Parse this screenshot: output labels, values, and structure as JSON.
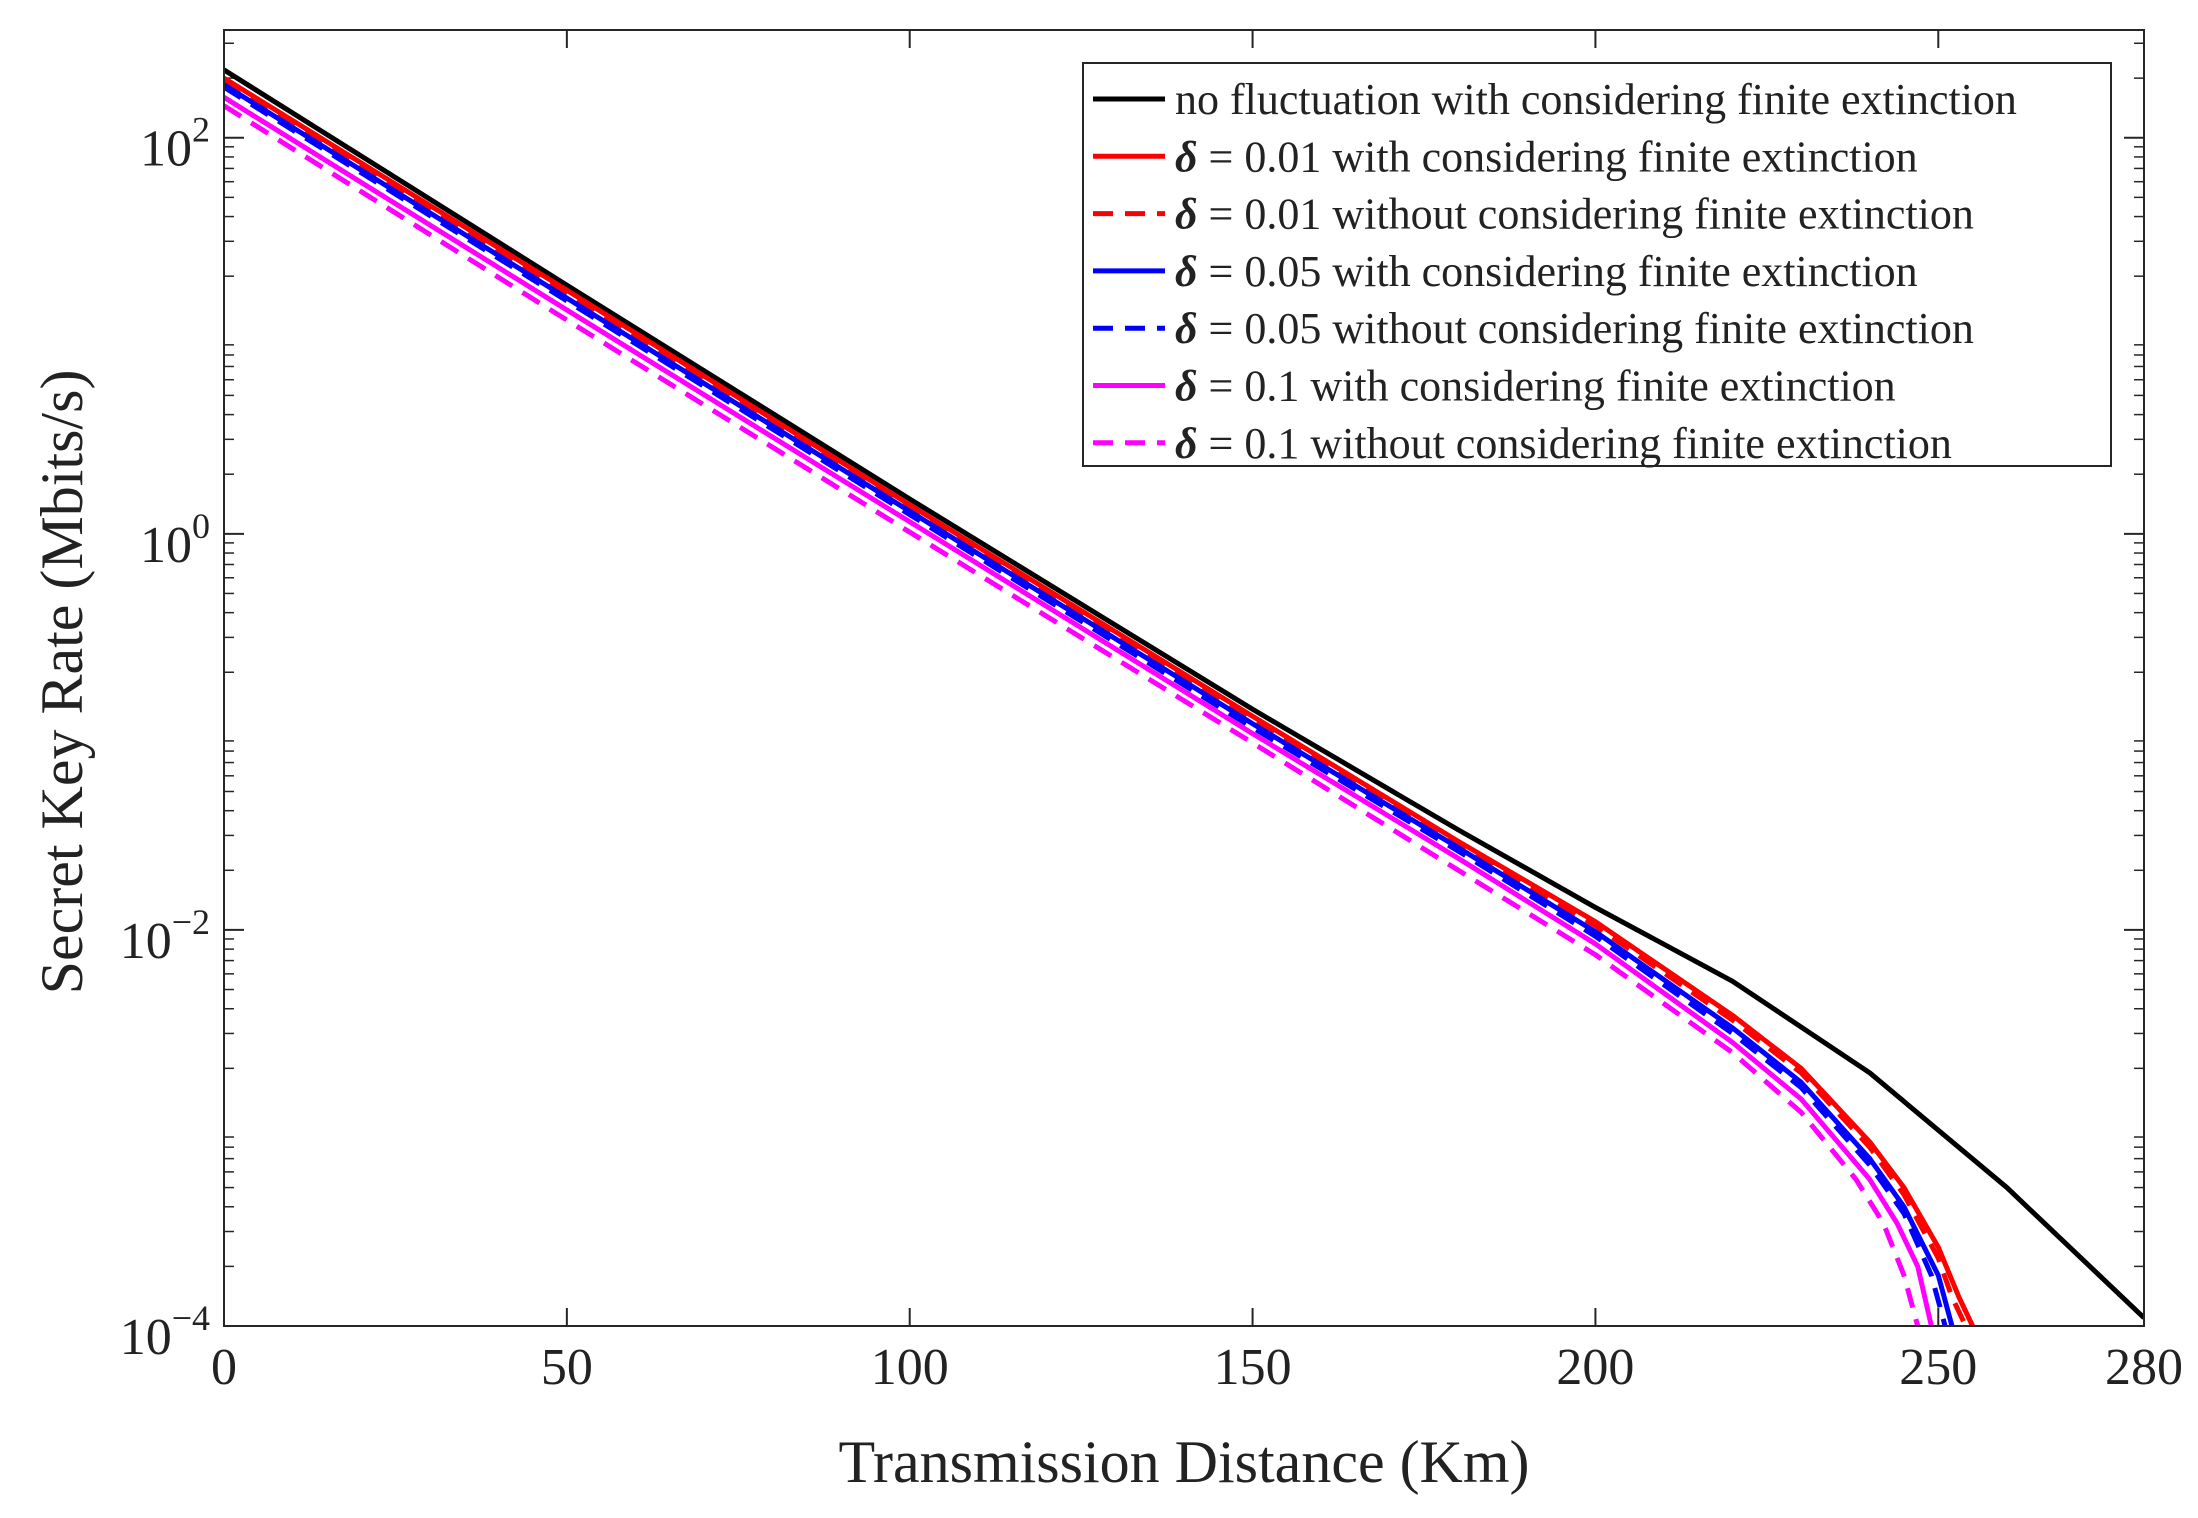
{
  "chart_data": {
    "type": "line",
    "title": "",
    "xlabel": "Transmission Distance (Km)",
    "ylabel": "Secret Key Rate (Mbits/s)",
    "yscale": "log",
    "xlim": [
      0,
      280
    ],
    "ylim": [
      0.0001,
      350
    ],
    "x_ticks": [
      {
        "value": 0,
        "label": "0"
      },
      {
        "value": 50,
        "label": "50"
      },
      {
        "value": 100,
        "label": "100"
      },
      {
        "value": 150,
        "label": "150"
      },
      {
        "value": 200,
        "label": "200"
      },
      {
        "value": 250,
        "label": "250"
      },
      {
        "value": 280,
        "label": "280"
      }
    ],
    "y_ticks": [
      {
        "value": 100,
        "base": "10",
        "exp": "2"
      },
      {
        "value": 1,
        "base": "10",
        "exp": "0"
      },
      {
        "value": 0.01,
        "base": "10",
        "exp": "−2"
      },
      {
        "value": 0.0001,
        "base": "10",
        "exp": "−4"
      }
    ],
    "legend_position": "top-right",
    "series": [
      {
        "name": "no fluctuation with considering finite extinction",
        "color": "#000000",
        "dash": "solid",
        "x": [
          0,
          50,
          100,
          150,
          180,
          200,
          220,
          240,
          260,
          280
        ],
        "y": [
          220,
          18,
          1.5,
          0.13,
          0.032,
          0.013,
          0.0055,
          0.0019,
          0.0005,
          0.00011
        ]
      },
      {
        "name": "δ = 0.01 with considering finite extinction",
        "color": "#ff0000",
        "dash": "solid",
        "x": [
          0,
          50,
          100,
          150,
          180,
          200,
          220,
          230,
          240,
          245,
          250,
          253,
          255
        ],
        "y": [
          200,
          17,
          1.4,
          0.12,
          0.028,
          0.011,
          0.0037,
          0.002,
          0.00085,
          0.0005,
          0.00025,
          0.00014,
          0.0001
        ]
      },
      {
        "name": "δ = 0.01 without considering finite extinction",
        "color": "#ff0000",
        "dash": "dashed",
        "x": [
          0,
          50,
          100,
          150,
          180,
          200,
          220,
          230,
          240,
          245,
          250,
          252,
          254
        ],
        "y": [
          195,
          16.5,
          1.35,
          0.115,
          0.027,
          0.0105,
          0.0035,
          0.0019,
          0.0008,
          0.00046,
          0.00022,
          0.00014,
          0.0001
        ]
      },
      {
        "name": "δ = 0.05 with considering finite extinction",
        "color": "#0000ff",
        "dash": "solid",
        "x": [
          0,
          50,
          100,
          150,
          180,
          200,
          220,
          230,
          240,
          245,
          250,
          252
        ],
        "y": [
          185,
          15.5,
          1.3,
          0.11,
          0.026,
          0.0098,
          0.0032,
          0.0017,
          0.0007,
          0.0004,
          0.00018,
          0.0001
        ]
      },
      {
        "name": "δ = 0.05 without considering finite extinction",
        "color": "#0000ff",
        "dash": "dashed",
        "x": [
          0,
          50,
          100,
          150,
          180,
          200,
          220,
          230,
          240,
          245,
          249,
          251
        ],
        "y": [
          180,
          15,
          1.25,
          0.105,
          0.025,
          0.0093,
          0.003,
          0.0016,
          0.00065,
          0.00037,
          0.00018,
          0.0001
        ]
      },
      {
        "name": "δ = 0.1 with considering finite extinction",
        "color": "#ff00ff",
        "dash": "solid",
        "x": [
          0,
          50,
          100,
          150,
          180,
          200,
          220,
          230,
          240,
          244,
          247,
          249
        ],
        "y": [
          160,
          13.5,
          1.15,
          0.098,
          0.023,
          0.0085,
          0.0027,
          0.0014,
          0.00055,
          0.00033,
          0.0002,
          0.0001
        ]
      },
      {
        "name": "δ = 0.1 without considering finite extinction",
        "color": "#ff00ff",
        "dash": "dashed",
        "x": [
          0,
          50,
          100,
          150,
          180,
          200,
          220,
          230,
          238,
          242,
          245,
          247
        ],
        "y": [
          145,
          12,
          1.02,
          0.088,
          0.02,
          0.0075,
          0.0024,
          0.0012,
          0.00055,
          0.00033,
          0.00018,
          0.0001
        ]
      }
    ]
  }
}
